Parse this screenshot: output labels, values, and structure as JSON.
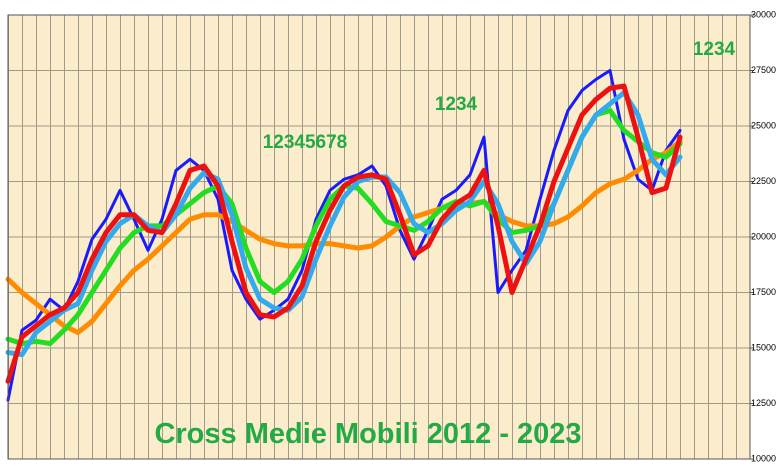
{
  "chart_data": {
    "type": "line",
    "title": "Cross Medie Mobili 2012 - 2023",
    "annotations": [
      "12345678",
      "1234",
      "1234"
    ],
    "ylim": [
      10000,
      30000
    ],
    "yticks": [
      10000,
      12500,
      15000,
      17500,
      20000,
      22500,
      25000,
      27500,
      30000
    ],
    "grid": true,
    "series": [
      {
        "color": "#1a1aff",
        "values": [
          12650,
          15800,
          16250,
          17200,
          16700,
          18000,
          19900,
          20800,
          22100,
          20800,
          19400,
          20800,
          23000,
          23500,
          23000,
          21700,
          18500,
          17200,
          16300,
          16700,
          17200,
          18500,
          20800,
          22100,
          22600,
          22800,
          23200,
          22300,
          20300,
          19000,
          20300,
          21700,
          22100,
          22800,
          24500,
          17500,
          18500,
          19400,
          21700,
          23900,
          25700,
          26600,
          27100,
          27500,
          24400,
          22600,
          22100,
          23900,
          24800
        ]
      },
      {
        "color": "#ff8c00",
        "values": [
          18100,
          17500,
          17000,
          16500,
          16000,
          15700,
          16200,
          17000,
          17800,
          18500,
          19000,
          19600,
          20200,
          20800,
          21000,
          21000,
          20700,
          20300,
          19900,
          19700,
          19600,
          19600,
          19700,
          19700,
          19600,
          19500,
          19600,
          20000,
          20500,
          20900,
          21100,
          21300,
          21400,
          21500,
          21600,
          21000,
          20700,
          20500,
          20500,
          20600,
          20900,
          21400,
          22000,
          22400,
          22600,
          23000,
          23500,
          23800,
          24300
        ]
      },
      {
        "color": "#22dd22",
        "values": [
          15400,
          15200,
          15300,
          15200,
          15800,
          16500,
          17500,
          18500,
          19500,
          20200,
          20500,
          20500,
          21000,
          21500,
          22000,
          22300,
          21500,
          19500,
          18000,
          17500,
          18000,
          19000,
          20500,
          21700,
          22300,
          22200,
          21500,
          20700,
          20500,
          20300,
          20700,
          21300,
          21600,
          21400,
          21600,
          20800,
          20200,
          20300,
          20500,
          21500,
          23000,
          24500,
          25500,
          25700,
          24800,
          24300,
          23800,
          23600,
          24200
        ]
      },
      {
        "color": "#33aaee",
        "values": [
          14800,
          14700,
          15700,
          16200,
          16700,
          17000,
          18500,
          19800,
          20600,
          21000,
          20500,
          20200,
          21000,
          22200,
          22900,
          22600,
          21000,
          18600,
          17200,
          16800,
          16700,
          17300,
          19000,
          20500,
          21800,
          22500,
          22700,
          22700,
          22000,
          20600,
          20200,
          20600,
          21200,
          21600,
          22500,
          21500,
          19800,
          18800,
          19800,
          21500,
          23000,
          24500,
          25500,
          26000,
          26500,
          25500,
          23500,
          22800,
          23600
        ]
      },
      {
        "color": "#ee1111",
        "values": [
          13500,
          15500,
          16000,
          16500,
          16800,
          17500,
          19000,
          20200,
          21000,
          21000,
          20300,
          20200,
          21500,
          23000,
          23200,
          22300,
          19800,
          17500,
          16500,
          16400,
          16800,
          17800,
          19800,
          21200,
          22300,
          22700,
          22800,
          22600,
          21000,
          19200,
          19600,
          20800,
          21500,
          21900,
          23000,
          20500,
          17500,
          19000,
          20500,
          22500,
          24000,
          25500,
          26200,
          26700,
          26800,
          24500,
          22000,
          22200,
          24500
        ]
      }
    ]
  }
}
